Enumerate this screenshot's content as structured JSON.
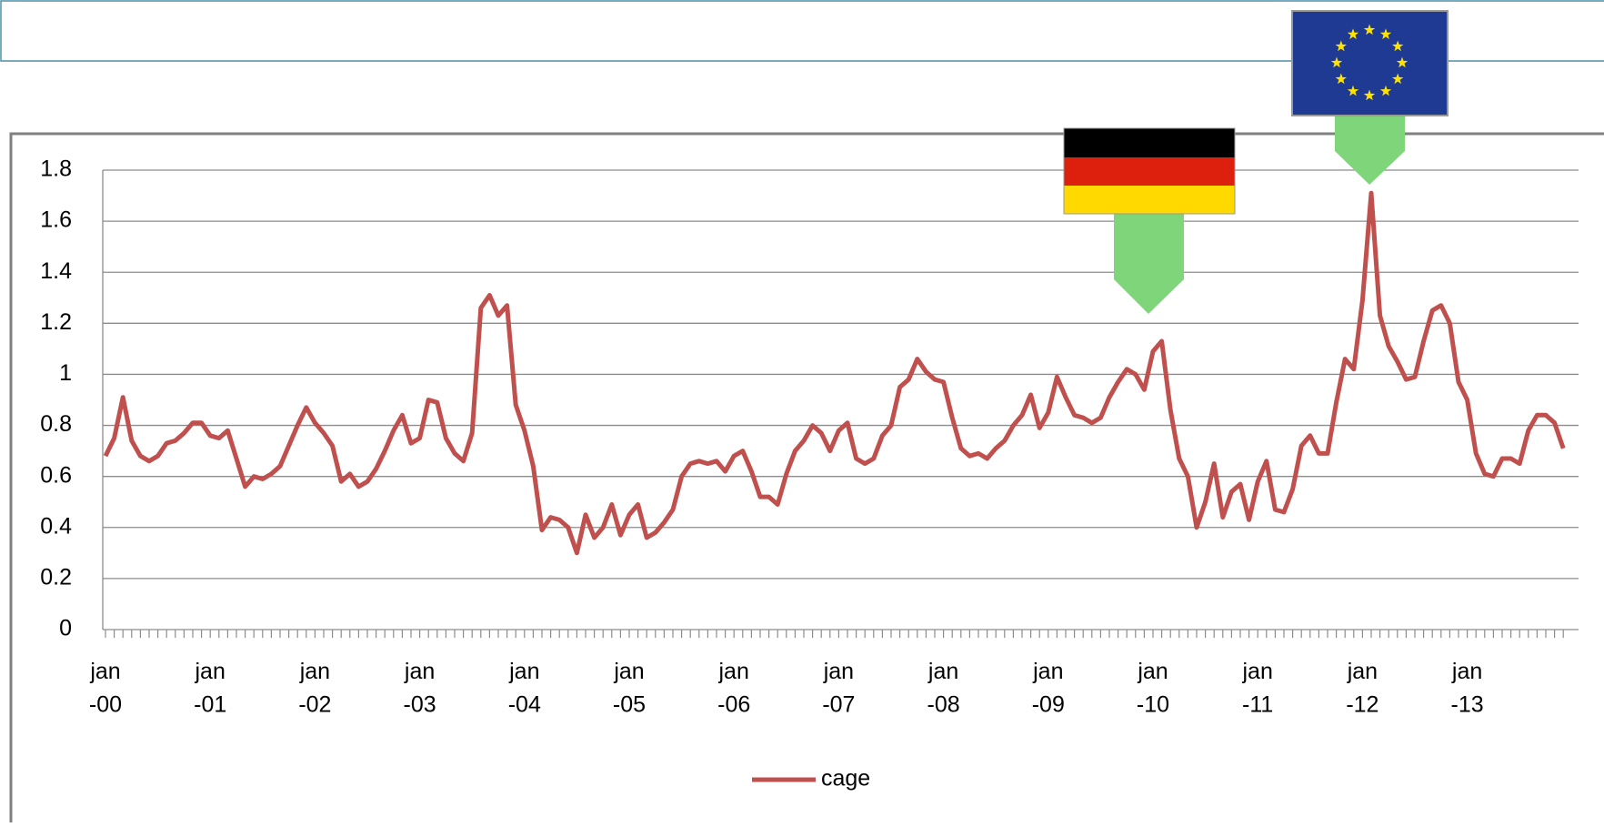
{
  "chart_data": {
    "type": "line",
    "categories": [
      "jan\n-00",
      null,
      null,
      null,
      null,
      null,
      null,
      null,
      null,
      null,
      null,
      null,
      "jan\n-01",
      null,
      null,
      null,
      null,
      null,
      null,
      null,
      null,
      null,
      null,
      null,
      "jan\n-02",
      null,
      null,
      null,
      null,
      null,
      null,
      null,
      null,
      null,
      null,
      null,
      "jan\n-03",
      null,
      null,
      null,
      null,
      null,
      null,
      null,
      null,
      null,
      null,
      null,
      "jan\n-04",
      null,
      null,
      null,
      null,
      null,
      null,
      null,
      null,
      null,
      null,
      null,
      "jan\n-05",
      null,
      null,
      null,
      null,
      null,
      null,
      null,
      null,
      null,
      null,
      null,
      "jan\n-06",
      null,
      null,
      null,
      null,
      null,
      null,
      null,
      null,
      null,
      null,
      null,
      "jan\n-07",
      null,
      null,
      null,
      null,
      null,
      null,
      null,
      null,
      null,
      null,
      null,
      "jan\n-08",
      null,
      null,
      null,
      null,
      null,
      null,
      null,
      null,
      null,
      null,
      null,
      "jan\n-09",
      null,
      null,
      null,
      null,
      null,
      null,
      null,
      null,
      null,
      null,
      null,
      "jan\n-10",
      null,
      null,
      null,
      null,
      null,
      null,
      null,
      null,
      null,
      null,
      null,
      "jan\n-11",
      null,
      null,
      null,
      null,
      null,
      null,
      null,
      null,
      null,
      null,
      null,
      "jan\n-12",
      null,
      null,
      null,
      null,
      null,
      null,
      null,
      null,
      null,
      null,
      null,
      "jan\n-13",
      null,
      null,
      null,
      null,
      null,
      null,
      null,
      null,
      null,
      null,
      null
    ],
    "series": [
      {
        "name": "cage",
        "color": "#c0504d",
        "values": [
          0.68,
          0.75,
          0.91,
          0.74,
          0.68,
          0.66,
          0.68,
          0.73,
          0.74,
          0.77,
          0.81,
          0.81,
          0.76,
          0.75,
          0.78,
          0.67,
          0.56,
          0.6,
          0.59,
          0.61,
          0.64,
          0.72,
          0.8,
          0.87,
          0.81,
          0.77,
          0.72,
          0.58,
          0.61,
          0.56,
          0.58,
          0.63,
          0.7,
          0.78,
          0.84,
          0.73,
          0.75,
          0.9,
          0.89,
          0.75,
          0.69,
          0.66,
          0.77,
          1.26,
          1.31,
          1.23,
          1.27,
          0.88,
          0.78,
          0.64,
          0.39,
          0.44,
          0.43,
          0.4,
          0.3,
          0.45,
          0.36,
          0.4,
          0.49,
          0.37,
          0.45,
          0.49,
          0.36,
          0.38,
          0.42,
          0.47,
          0.6,
          0.65,
          0.66,
          0.65,
          0.66,
          0.62,
          0.68,
          0.7,
          0.62,
          0.52,
          0.52,
          0.49,
          0.61,
          0.7,
          0.74,
          0.8,
          0.77,
          0.7,
          0.78,
          0.81,
          0.67,
          0.65,
          0.67,
          0.76,
          0.8,
          0.95,
          0.98,
          1.06,
          1.01,
          0.98,
          0.97,
          0.83,
          0.71,
          0.68,
          0.69,
          0.67,
          0.71,
          0.74,
          0.8,
          0.84,
          0.92,
          0.79,
          0.85,
          0.99,
          0.91,
          0.84,
          0.83,
          0.81,
          0.83,
          0.91,
          0.97,
          1.02,
          1.0,
          0.94,
          1.09,
          1.13,
          0.86,
          0.67,
          0.6,
          0.4,
          0.5,
          0.65,
          0.44,
          0.54,
          0.57,
          0.43,
          0.58,
          0.66,
          0.47,
          0.46,
          0.55,
          0.72,
          0.76,
          0.69,
          0.69,
          0.89,
          1.06,
          1.02,
          1.29,
          1.71,
          1.23,
          1.11,
          1.05,
          0.98,
          0.99,
          1.13,
          1.25,
          1.27,
          1.2,
          0.97,
          0.9,
          0.69,
          0.61,
          0.6,
          0.67,
          0.67,
          0.65,
          0.78,
          0.84,
          0.84,
          0.81,
          0.71
        ]
      }
    ],
    "ylim": [
      0,
      1.8
    ],
    "yticks": [
      0,
      0.2,
      0.4,
      0.6,
      0.8,
      1,
      1.2,
      1.4,
      1.6,
      1.8
    ],
    "grid": true,
    "legend": "bottom"
  }
}
